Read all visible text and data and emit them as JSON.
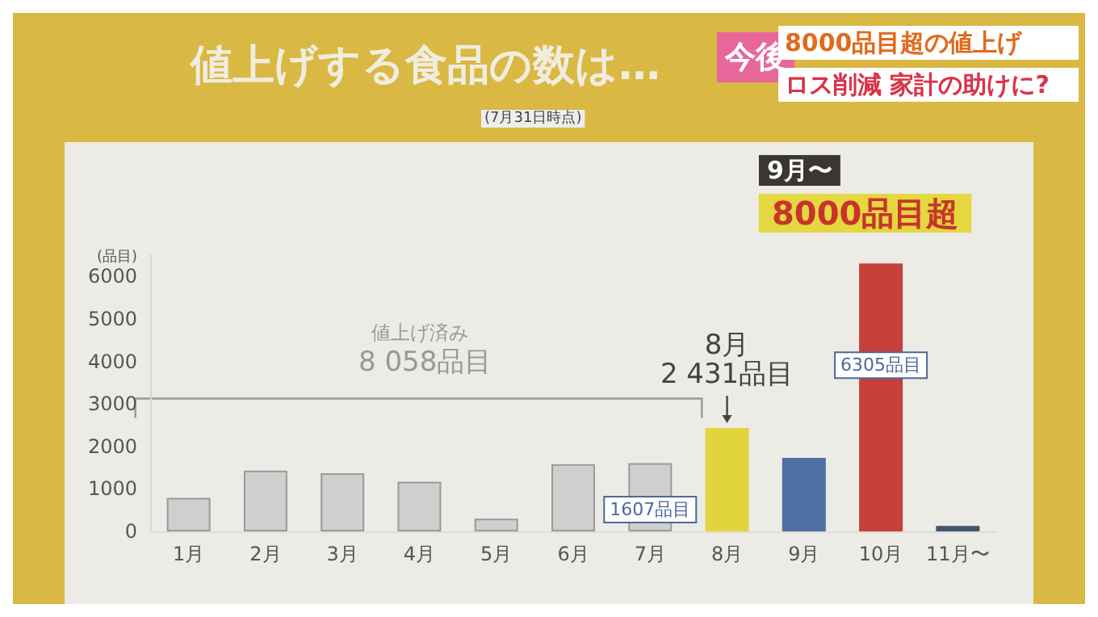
{
  "chart_data": {
    "type": "bar",
    "title": "値上げする食品の数は…",
    "ylabel": "(品目)",
    "annotations": [
      "(7月31日時点)",
      "今後",
      "8000品目超の値上げ",
      "ロス削減 家計の助けに?",
      "値上げ済み",
      "8 058品目",
      "9月〜",
      "8000品目超"
    ],
    "categories": [
      "1月",
      "2月",
      "3月",
      "4月",
      "5月",
      "6月",
      "7月",
      "8月",
      "9月",
      "10月",
      "11月〜"
    ],
    "values": [
      790,
      1430,
      1370,
      1170,
      300,
      1580,
      1607,
      2431,
      1730,
      6305,
      130
    ],
    "colors": [
      "#cfcfcf",
      "#cfcfcf",
      "#cfcfcf",
      "#cfcfcf",
      "#cfcfcf",
      "#cfcfcf",
      "#cfcfcf",
      "#e2d43c",
      "#4d6fa3",
      "#c7403a",
      "#44546a"
    ],
    "value_labels": [
      null,
      null,
      null,
      null,
      null,
      null,
      "1607品目",
      "8月\n2 431品目",
      null,
      "6305品目",
      null
    ],
    "ylim": [
      0,
      6500
    ],
    "yticks": [
      0,
      1000,
      2000,
      3000,
      4000,
      5000,
      6000
    ],
    "grid": false
  }
}
